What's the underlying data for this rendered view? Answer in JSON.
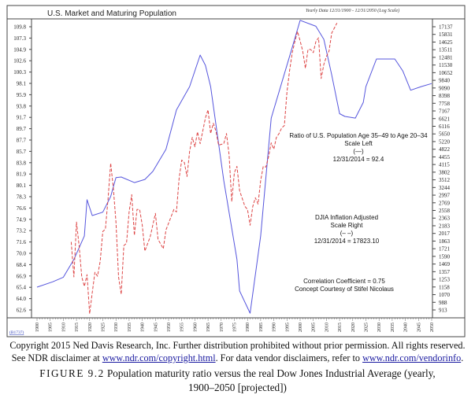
{
  "chart_data": {
    "type": "line",
    "title": "U.S. Market and Maturing Population",
    "subtitle": "Yearly Data 12/31/1900 - 12/31/2050 (Log Scale)",
    "source_code": "(B1737)",
    "x_ticks": [
      1900,
      1905,
      1910,
      1915,
      1920,
      1925,
      1930,
      1935,
      1940,
      1945,
      1950,
      1955,
      1960,
      1965,
      1970,
      1975,
      1980,
      1985,
      1990,
      1995,
      2000,
      2005,
      2010,
      2015,
      2020,
      2025,
      2030,
      2035,
      2040,
      2045,
      2050
    ],
    "xlim": [
      1900,
      2050
    ],
    "left_axis": {
      "scale": "log",
      "ylim": [
        62.6,
        109.8
      ],
      "ticks": [
        "109.8",
        "107.3",
        "104.9",
        "102.6",
        "100.3",
        "98.1",
        "95.9",
        "93.8",
        "91.7",
        "89.7",
        "87.7",
        "85.7",
        "83.8",
        "81.9",
        "80.1",
        "78.3",
        "76.6",
        "74.9",
        "73.2",
        "71.6",
        "70.0",
        "68.4",
        "66.9",
        "65.4",
        "64.0",
        "62.6"
      ]
    },
    "right_axis": {
      "scale": "log",
      "ylim": [
        913,
        17137
      ],
      "ticks": [
        "17137",
        "15831",
        "14625",
        "13511",
        "12481",
        "11530",
        "10652",
        "9840",
        "9090",
        "8398",
        "7758",
        "7167",
        "6621",
        "6116",
        "5650",
        "5220",
        "4822",
        "4455",
        "4115",
        "3802",
        "3512",
        "3244",
        "2997",
        "2769",
        "2558",
        "2363",
        "2183",
        "2017",
        "1863",
        "1721",
        "1590",
        "1469",
        "1357",
        "1253",
        "1158",
        "1070",
        "988",
        "913"
      ]
    },
    "grid": false,
    "series": [
      {
        "name": "Ratio of U.S. Population Age 35–49 to Age 20–34",
        "axis": "left",
        "color": "#5555dd",
        "style": "solid",
        "x": [
          1900,
          1906,
          1910,
          1914,
          1918,
          1919,
          1921,
          1925,
          1928,
          1930,
          1932,
          1937,
          1941,
          1944,
          1949,
          1953,
          1958,
          1962,
          1964,
          1966,
          1971,
          1976,
          1977,
          1981,
          1985,
          1989,
          1997,
          2000,
          2006,
          2009,
          2012,
          2015,
          2017,
          2021,
          2024,
          2025,
          2029,
          2036,
          2039,
          2042,
          2046,
          2050
        ],
        "y": [
          65.5,
          66.2,
          66.8,
          69.2,
          72.5,
          77.9,
          75.5,
          76.0,
          78.4,
          81.4,
          81.5,
          80.6,
          81.1,
          82.4,
          86.1,
          93.1,
          97.5,
          103.8,
          101.7,
          97.5,
          80.9,
          69.2,
          65.0,
          62.2,
          72.5,
          91.6,
          105.4,
          111.2,
          109.9,
          107.1,
          99.8,
          92.4,
          91.9,
          91.6,
          94.5,
          97.5,
          103.0,
          103.0,
          100.6,
          96.8,
          97.5,
          98.1
        ]
      },
      {
        "name": "DJIA Inflation Adjusted",
        "axis": "right",
        "color": "#dd4444",
        "style": "dashed",
        "x": [
          1913,
          1914,
          1915,
          1916,
          1917,
          1918,
          1919,
          1920,
          1921,
          1922,
          1923,
          1924,
          1925,
          1926,
          1927,
          1928,
          1929,
          1930,
          1931,
          1932,
          1933,
          1934,
          1935,
          1936,
          1937,
          1938,
          1939,
          1940,
          1941,
          1943,
          1945,
          1946,
          1948,
          1949,
          1952,
          1953,
          1954,
          1955,
          1956,
          1957,
          1958,
          1959,
          1960,
          1961,
          1962,
          1963,
          1964,
          1965,
          1966,
          1967,
          1968,
          1969,
          1971,
          1972,
          1973,
          1974,
          1975,
          1976,
          1977,
          1979,
          1980,
          1981,
          1982,
          1983,
          1984,
          1985,
          1986,
          1987,
          1988,
          1989,
          1990,
          1991,
          1992,
          1993,
          1994,
          1995,
          1996,
          1997,
          1998,
          1999,
          2000,
          2001,
          2002,
          2003,
          2004,
          2005,
          2006,
          2007,
          2008,
          2009,
          2010,
          2011,
          2012,
          2014
        ],
        "y": [
          1847,
          1285,
          2269,
          1777,
          1285,
          1166,
          1316,
          877,
          1092,
          1349,
          1295,
          1512,
          2058,
          2110,
          2893,
          4171,
          3217,
          2269,
          1285,
          1074,
          1777,
          1820,
          2520,
          3014,
          1976,
          2584,
          2584,
          2195,
          1679,
          1944,
          2480,
          1897,
          1721,
          2091,
          2584,
          2520,
          3573,
          4308,
          4204,
          3633,
          4713,
          5453,
          4946,
          5772,
          5110,
          5820,
          6680,
          7244,
          5676,
          6312,
          5820,
          5028,
          5110,
          5676,
          4560,
          2802,
          3782,
          4036,
          3138,
          2668,
          2584,
          2195,
          2668,
          2917,
          2733,
          3487,
          4036,
          4010,
          4452,
          5151,
          4827,
          5453,
          5676,
          6010,
          6159,
          8733,
          10873,
          13110,
          14690,
          16320,
          14800,
          13320,
          11140,
          13540,
          13540,
          13110,
          14690,
          15290,
          10030,
          11600,
          12590,
          13320,
          16060,
          17823
        ]
      }
    ],
    "annotations": {
      "ratio": [
        "Ratio of U.S. Population Age 35–49 to Age 20–34",
        "Scale Left",
        "(—)",
        "12/31/2014 = 92.4"
      ],
      "djia": [
        "DJIA Inflation Adjusted",
        "Scale Right",
        "(– –)",
        "12/31/2014 = 17823.10"
      ],
      "corr": [
        "Correlation Coefficient = 0.75",
        "Concept Courtesy of Stifel Nicolaus"
      ]
    }
  },
  "caption": {
    "line1": "Copyright 2015 Ned Davis Research, Inc. Further distribution prohibited without prior permission. All rights reserved.",
    "line2_pre": "See NDR disclaimer at ",
    "link1": "www.ndr.com/copyright.html",
    "line2_mid": ". For data vendor disclaimers, refer to ",
    "link2": "www.ndr.com/vendorinfo",
    "line2_post": ".",
    "figure_label": "FIGURE 9.2",
    "figure_text": " Population maturity ratio versus the real Dow Jones Industrial Average (yearly, 1900–2050 [projected])"
  }
}
